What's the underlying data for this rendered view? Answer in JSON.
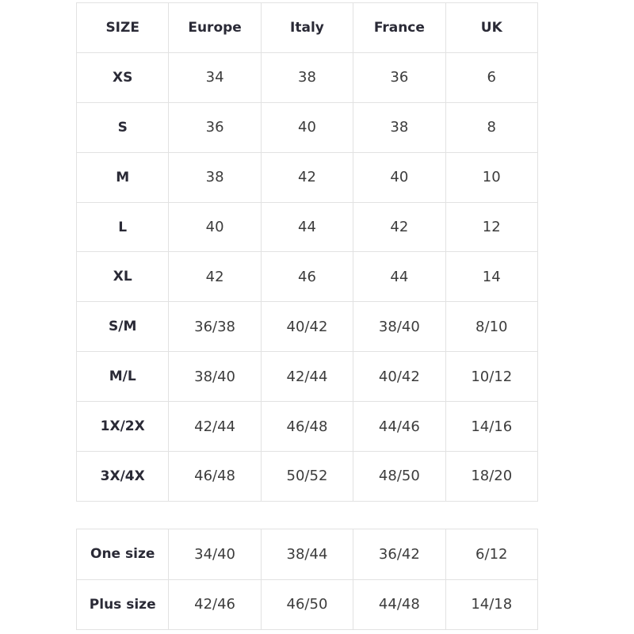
{
  "size_table": {
    "headers": [
      "SIZE",
      "Europe",
      "Italy",
      "France",
      "UK"
    ],
    "rows": [
      [
        "XS",
        "34",
        "38",
        "36",
        "6"
      ],
      [
        "S",
        "36",
        "40",
        "38",
        "8"
      ],
      [
        "M",
        "38",
        "42",
        "40",
        "10"
      ],
      [
        "L",
        "40",
        "44",
        "42",
        "12"
      ],
      [
        "XL",
        "42",
        "46",
        "44",
        "14"
      ],
      [
        "S/M",
        "36/38",
        "40/42",
        "38/40",
        "8/10"
      ],
      [
        "M/L",
        "38/40",
        "42/44",
        "40/42",
        "10/12"
      ],
      [
        "1X/2X",
        "42/44",
        "46/48",
        "44/46",
        "14/16"
      ],
      [
        "3X/4X",
        "46/48",
        "50/52",
        "48/50",
        "18/20"
      ]
    ]
  },
  "range_table": {
    "rows": [
      [
        "One size",
        "34/40",
        "38/44",
        "36/42",
        "6/12"
      ],
      [
        "Plus size",
        "42/46",
        "46/50",
        "44/48",
        "14/18"
      ]
    ]
  }
}
